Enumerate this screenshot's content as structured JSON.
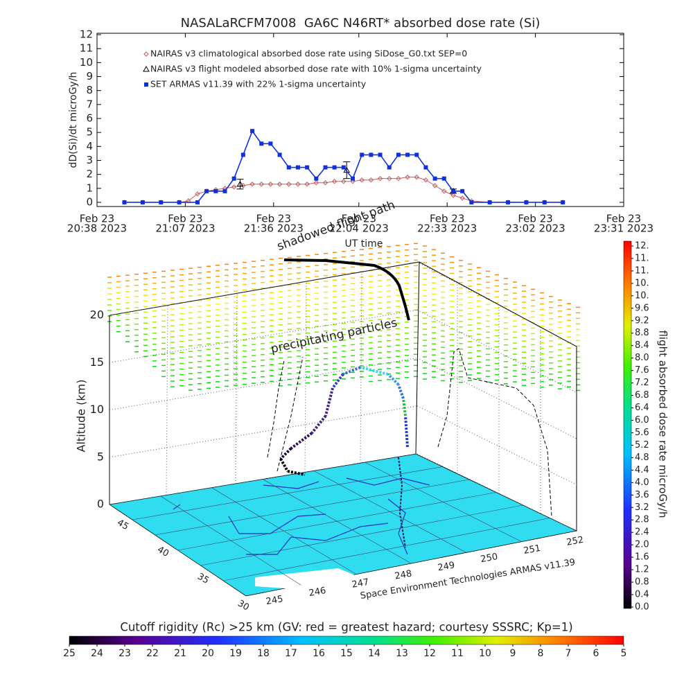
{
  "chart_data": [
    {
      "type": "line",
      "title": "NASALaRCFM7008  GA6C N46RT* absorbed dose rate (Si)",
      "ylabel": "dD(Si)/dt microGy/h",
      "xlabel": "UT time",
      "xlim": [
        "20:38",
        "23:31"
      ],
      "xticks": [
        {
          "value": "20:38",
          "label": [
            "Feb 23",
            "20:38 2023"
          ]
        },
        {
          "value": "21:07",
          "label": [
            "Feb 23",
            "21:07 2023"
          ]
        },
        {
          "value": "21:36",
          "label": [
            "Feb 23",
            "21:36 2023"
          ]
        },
        {
          "value": "22:04",
          "label": [
            "Feb 23",
            "22:04 2023"
          ]
        },
        {
          "value": "22:33",
          "label": [
            "Feb 23",
            "22:33 2023"
          ]
        },
        {
          "value": "23:02",
          "label": [
            "Feb 23",
            "23:02 2023"
          ]
        },
        {
          "value": "23:31",
          "label": [
            "Feb 23",
            "23:31 2023"
          ]
        }
      ],
      "ylim": [
        -0.3,
        12.1
      ],
      "yticks": [
        0,
        1,
        2,
        3,
        4,
        5,
        6,
        7,
        8,
        9,
        10,
        11,
        12
      ],
      "series": [
        {
          "name": "NAIRAS v3 climatological absorbed dose rate using SiDose_G0.txt SEP=0",
          "color": "#c85a5a",
          "marker": "diamond",
          "line": true,
          "x": [
            "20:47",
            "20:53",
            "20:59",
            "21:05",
            "21:08",
            "21:11",
            "21:14",
            "21:17",
            "21:20",
            "21:23",
            "21:26",
            "21:29",
            "21:32",
            "21:35",
            "21:38",
            "21:41",
            "21:44",
            "21:47",
            "21:50",
            "21:53",
            "21:56",
            "21:59",
            "22:02",
            "22:05",
            "22:08",
            "22:11",
            "22:14",
            "22:17",
            "22:20",
            "22:23",
            "22:26",
            "22:29",
            "22:32",
            "22:35",
            "22:38",
            "22:41",
            "22:47",
            "22:53",
            "22:59",
            "23:05",
            "23:11"
          ],
          "values": [
            0,
            0,
            0,
            0,
            0.1,
            0.6,
            0.8,
            0.9,
            1.0,
            1.1,
            1.2,
            1.3,
            1.3,
            1.3,
            1.3,
            1.3,
            1.3,
            1.3,
            1.4,
            1.4,
            1.5,
            1.5,
            1.5,
            1.6,
            1.6,
            1.7,
            1.7,
            1.7,
            1.8,
            1.8,
            1.6,
            1.2,
            0.8,
            0.5,
            0.3,
            0.1,
            0,
            0,
            0,
            0,
            0
          ]
        },
        {
          "name": "NAIRAS v3 flight modeled absorbed dose rate with 10% 1-sigma uncertainty",
          "color": "#000000",
          "marker": "triangle",
          "line": false,
          "x": [
            "21:25",
            "22:00",
            "22:35"
          ],
          "values": [
            1.3,
            2.3,
            0.8
          ],
          "errors": [
            0.35,
            0.6,
            0.15
          ]
        },
        {
          "name": "SET ARMAS v11.39 with 22% 1-sigma uncertainty",
          "color": "#1030e0",
          "marker": "square",
          "line": true,
          "x": [
            "20:47",
            "20:53",
            "20:59",
            "21:05",
            "21:11",
            "21:14",
            "21:17",
            "21:20",
            "21:23",
            "21:26",
            "21:29",
            "21:32",
            "21:35",
            "21:38",
            "21:41",
            "21:44",
            "21:47",
            "21:50",
            "21:53",
            "21:56",
            "21:59",
            "22:02",
            "22:05",
            "22:08",
            "22:11",
            "22:14",
            "22:17",
            "22:20",
            "22:23",
            "22:26",
            "22:29",
            "22:32",
            "22:35",
            "22:38",
            "22:41",
            "22:47",
            "22:53",
            "22:59",
            "23:05",
            "23:11"
          ],
          "values": [
            0,
            0,
            0,
            0,
            0,
            0.8,
            0.8,
            0.8,
            1.7,
            3.4,
            5.1,
            4.2,
            4.2,
            3.4,
            2.5,
            2.5,
            2.5,
            1.7,
            2.5,
            2.5,
            2.5,
            1.7,
            3.4,
            3.4,
            3.4,
            2.5,
            3.4,
            3.4,
            3.4,
            2.5,
            1.7,
            1.7,
            0.8,
            0.8,
            0,
            0,
            0,
            0,
            0,
            0
          ]
        }
      ]
    },
    {
      "type": "surface3d",
      "zlabel": "Altitude (km)",
      "zlim": [
        0,
        20
      ],
      "zticks": [
        0,
        5,
        10,
        15,
        20
      ],
      "latlim": [
        47,
        30
      ],
      "latticks": [
        45,
        40,
        35,
        30
      ],
      "lonlim": [
        244.4,
        252.1
      ],
      "lonticks": [
        245,
        246,
        247,
        248,
        249,
        250,
        251,
        252
      ],
      "annotations": [
        "shadowed flight path",
        "precipitating particles"
      ],
      "credit": "Space Environment Technologies ARMAS v11.39"
    },
    {
      "type": "colorbar",
      "orientation": "vertical",
      "label": "flight absorbed dose rate microGy/h",
      "lim": [
        0,
        11.8
      ],
      "ticks": [
        {
          "value": 0,
          "label": "0.0"
        },
        0.4,
        0.8,
        1.2,
        1.6,
        {
          "value": 2,
          "label": "2.0"
        },
        2.4,
        2.8,
        3.2,
        3.6,
        {
          "value": 4,
          "label": "4.0"
        },
        4.4,
        4.8,
        5.2,
        5.6,
        {
          "value": 6,
          "label": "6.0"
        },
        6.4,
        6.8,
        7.2,
        7.6,
        {
          "value": 8,
          "label": "8.0"
        },
        8.4,
        8.8,
        9.2,
        9.6,
        {
          "value": 10,
          "label": "10."
        },
        {
          "value": 10.4,
          "label": "10."
        },
        {
          "value": 10.8,
          "label": "11."
        },
        {
          "value": 11.2,
          "label": "11."
        },
        {
          "value": 11.6,
          "label": "12."
        }
      ]
    },
    {
      "type": "colorbar",
      "orientation": "horizontal",
      "label": "Cutoff rigidity (Rc) >25 km (GV: red = greatest hazard; courtesy SSSRC; Kp=1)",
      "lim": [
        25,
        5
      ],
      "ticks": [
        25,
        24,
        23,
        22,
        21,
        20,
        19,
        18,
        17,
        16,
        15,
        14,
        13,
        12,
        11,
        10,
        9,
        8,
        7,
        6,
        5
      ]
    }
  ]
}
